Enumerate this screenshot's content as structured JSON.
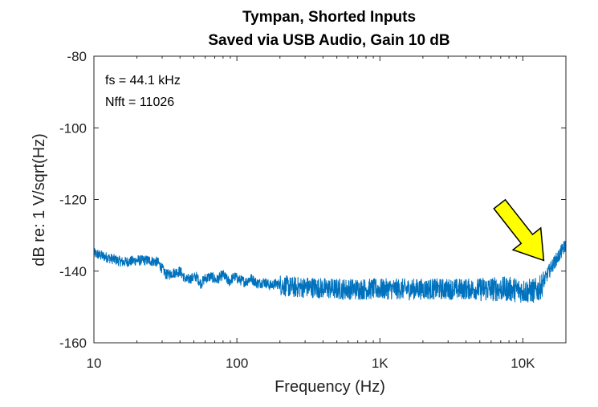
{
  "chart_data": {
    "type": "line",
    "title": [
      "Tympan, Shorted Inputs",
      "Saved via USB Audio, Gain 10 dB"
    ],
    "xlabel": "Frequency (Hz)",
    "ylabel": "dB re: 1 V/sqrt(Hz)",
    "xscale": "log",
    "xlim": [
      10,
      20000
    ],
    "ylim": [
      -160,
      -80
    ],
    "xticks": [
      10,
      100,
      1000,
      10000
    ],
    "xtick_labels": [
      "10",
      "100",
      "1K",
      "10K"
    ],
    "yticks": [
      -80,
      -100,
      -120,
      -140,
      -160
    ],
    "ytick_labels": [
      "-80",
      "-100",
      "-120",
      "-140",
      "-160"
    ],
    "grid": false,
    "annotations": [
      "fs = 44.1 kHz",
      "Nfft = 11026"
    ],
    "arrow": {
      "color": "#ffff00",
      "points_to": [
        14000,
        -137
      ]
    },
    "series": [
      {
        "color": "#0072bd",
        "x": [
          10,
          12,
          16,
          20,
          24,
          28,
          32,
          36,
          40,
          44,
          48,
          52,
          56,
          60,
          66,
          72,
          80,
          88,
          96,
          105,
          115,
          125,
          140,
          155,
          170,
          190,
          210,
          240,
          280,
          330,
          400,
          500,
          650,
          800,
          1000,
          1300,
          1700,
          2200,
          3000,
          4000,
          5000,
          6000,
          7000,
          8000,
          9000,
          10000,
          11000,
          12000,
          13000,
          14000,
          15000,
          16000,
          17000,
          18000,
          19000,
          20000
        ],
        "y": [
          -135,
          -136,
          -137.5,
          -137,
          -137,
          -137.5,
          -141,
          -140.5,
          -140,
          -142.5,
          -142,
          -141.5,
          -143.5,
          -142,
          -141.5,
          -142.5,
          -141,
          -143,
          -141.5,
          -142.5,
          -143,
          -142,
          -143.5,
          -143,
          -144,
          -143.5,
          -144,
          -144.5,
          -144.5,
          -144.5,
          -144.8,
          -145,
          -145,
          -145,
          -145,
          -145,
          -145,
          -145,
          -145,
          -145,
          -145,
          -145,
          -145,
          -145,
          -145.2,
          -145.5,
          -145.5,
          -145.5,
          -145,
          -143,
          -140.5,
          -138.5,
          -137,
          -135.5,
          -134,
          -132.5
        ],
        "noise": [
          {
            "from": 10,
            "to": 200,
            "amplitude": 1.5
          },
          {
            "from": 200,
            "to": 5000,
            "amplitude": 3
          },
          {
            "from": 5000,
            "to": 14000,
            "amplitude": 3.5
          },
          {
            "from": 14000,
            "to": 20000,
            "amplitude": 2
          }
        ]
      }
    ]
  }
}
